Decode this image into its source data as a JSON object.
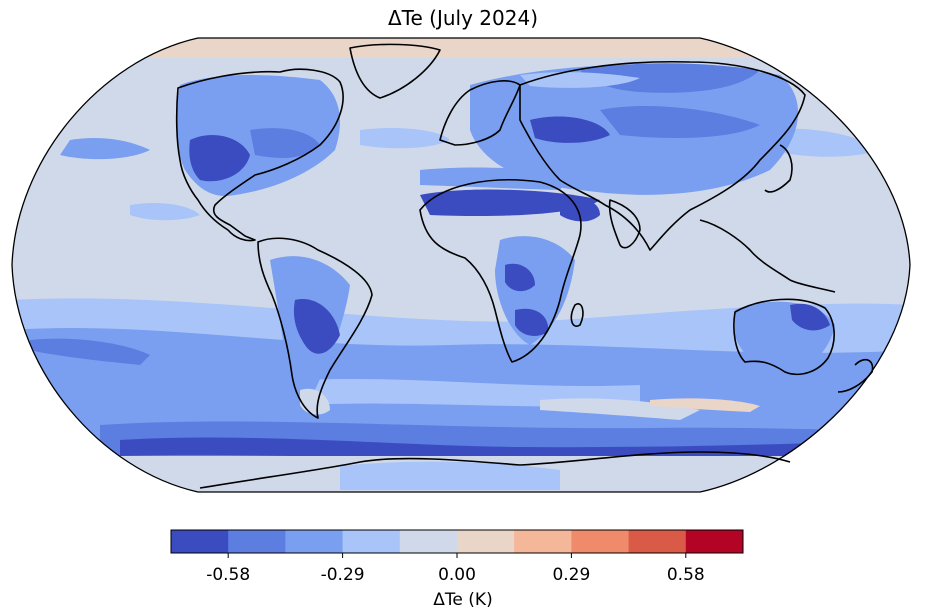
{
  "map": {
    "title": "ΔTe (July 2024)",
    "projection": "Robinson",
    "base_color": "#cfd9ea",
    "land_outline_color": "#000000"
  },
  "colorbar": {
    "label": "ΔTe (K)",
    "ticks": [
      "-0.58",
      "-0.29",
      "0.00",
      "0.29",
      "0.58"
    ],
    "tick_values": [
      -0.58,
      -0.29,
      0.0,
      0.29,
      0.58
    ],
    "range": [
      -0.725,
      0.725
    ],
    "colors": [
      "#3b4cc0",
      "#5b7ee0",
      "#7a9ff0",
      "#a9c4f8",
      "#cfd9ea",
      "#ead5c9",
      "#f5b799",
      "#ef8a6a",
      "#da5a48",
      "#b40426"
    ]
  }
}
